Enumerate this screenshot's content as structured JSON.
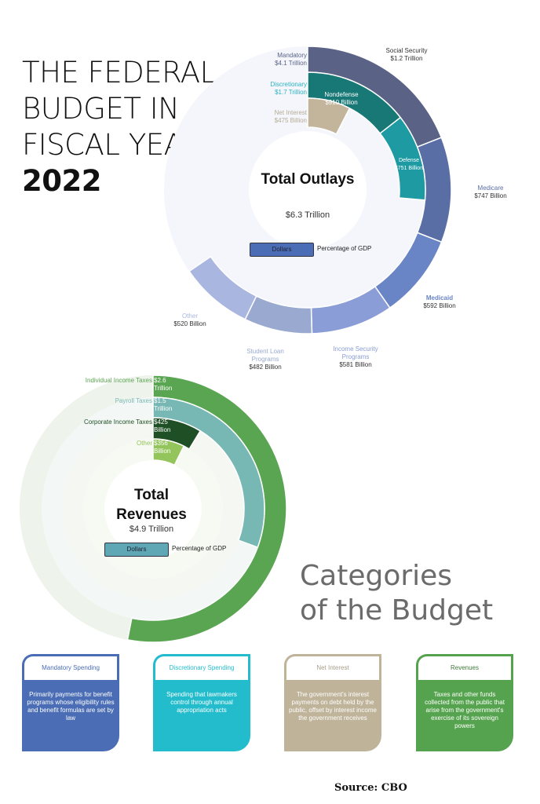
{
  "title": {
    "line1": "THE FEDERAL",
    "line2": "BUDGET IN",
    "line3": "FISCAL YEAR",
    "year": "2022"
  },
  "chart_data": [
    {
      "type": "pie",
      "title": "Total Outlays",
      "total_label": "$6.3 Trillion",
      "total": 6.3,
      "unit": "Trillion USD",
      "toggle": {
        "active": "Dollars",
        "inactive": "Percentage of GDP"
      },
      "rings": [
        {
          "name": "Mandatory",
          "value_label": "$4.1 Trillion",
          "color": "#5a6386",
          "segments": [
            {
              "name": "Social Security",
              "value": 1.2,
              "value_label": "$1.2 Trillion",
              "color": "#5a6386"
            },
            {
              "name": "Medicare",
              "value": 0.747,
              "value_label": "$747 Billion",
              "color": "#5a6ea6"
            },
            {
              "name": "Medicaid",
              "value": 0.592,
              "value_label": "$592 Billion",
              "color": "#6a85c6"
            },
            {
              "name": "Income Security Programs",
              "value": 0.581,
              "value_label": "$581 Billion",
              "color": "#8a9dd6"
            },
            {
              "name": "Student Loan Programs",
              "value": 0.482,
              "value_label": "$482 Billion",
              "color": "#9aa9d0"
            },
            {
              "name": "Other",
              "value": 0.52,
              "value_label": "$520 Billion",
              "color": "#a9b6df"
            }
          ]
        },
        {
          "name": "Discretionary",
          "value_label": "$1.7 Trillion",
          "color": "#2bb3c0",
          "segments": [
            {
              "name": "Nondefense",
              "value": 0.91,
              "value_label": "$910 Billion",
              "color": "#177876"
            },
            {
              "name": "Defense",
              "value": 0.751,
              "value_label": "$751 Billion",
              "color": "#1e9aa3"
            }
          ]
        },
        {
          "name": "Net Interest",
          "value_label": "$475 Billion",
          "color": "#bfb39a",
          "segments": [
            {
              "name": "Net Interest",
              "value": 0.475,
              "value_label": "$475 Billion",
              "color": "#c2b59b"
            }
          ]
        }
      ]
    },
    {
      "type": "pie",
      "title": "Total Revenues",
      "total_label": "$4.9 Trillion",
      "total": 4.9,
      "unit": "Trillion USD",
      "toggle": {
        "active": "Dollars",
        "inactive": "Percentage of GDP"
      },
      "rings": [
        {
          "name": "Individual Income Taxes",
          "value": 2.6,
          "value_label": "$2.6 Trillion",
          "color": "#5aa551"
        },
        {
          "name": "Payroll Taxes",
          "value": 1.5,
          "value_label": "$1.5 Trillion",
          "color": "#78b8b4"
        },
        {
          "name": "Corporate Income Taxes",
          "value": 0.425,
          "value_label": "$425 Billion",
          "color": "#1f4f25"
        },
        {
          "name": "Other",
          "value": 0.356,
          "value_label": "$356 Billion",
          "color": "#94c45c"
        }
      ]
    }
  ],
  "categories": {
    "heading_line1": "Categories",
    "heading_line2": "of the Budget",
    "cards": [
      {
        "title": "Mandatory Spending",
        "text": "Primarily payments for benefit programs whose eligibility rules and benefit formulas are set by law",
        "color": "#4a6db5",
        "title_color": "#4a6db5"
      },
      {
        "title": "Discretionary Spending",
        "text": "Spending that lawmakers control through annual appropriation acts",
        "color": "#22bccc",
        "title_color": "#22bccc"
      },
      {
        "title": "Net Interest",
        "text": "The government's interest payments on debt held by the public, offset by interest income the government receives",
        "color": "#bfb39a",
        "title_color": "#a89e8a"
      },
      {
        "title": "Revenues",
        "text": "Taxes and other funds collected from the public that arise from the government's exercise of its sovereign powers",
        "color": "#55a34e",
        "title_color": "#3f7a3a"
      }
    ]
  },
  "source": "Source:  CBO"
}
